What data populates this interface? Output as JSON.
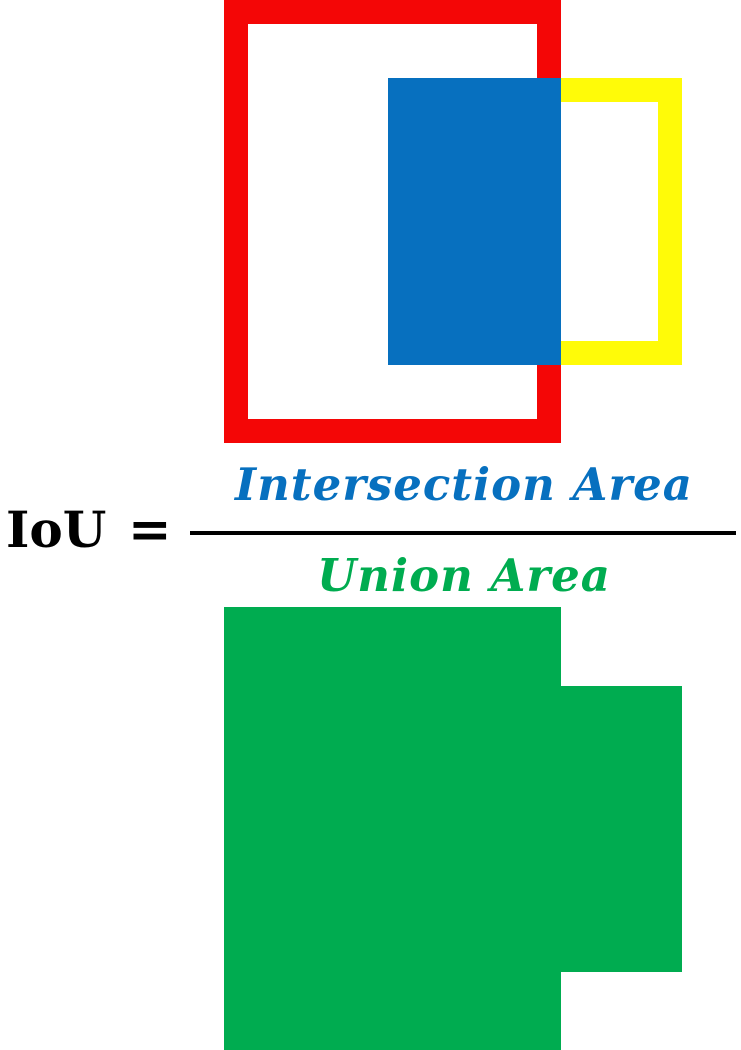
{
  "formula": {
    "lhs": "IoU",
    "equals": "=",
    "numerator": "Intersection Area",
    "denominator": "Union Area"
  },
  "colors": {
    "box_a": "#f40606",
    "box_b": "#fffb08",
    "intersection": "#0770bf",
    "union": "#00ac50",
    "numerator_text": "#0770bf",
    "denominator_text": "#00ac50",
    "formula_text": "#000000"
  }
}
